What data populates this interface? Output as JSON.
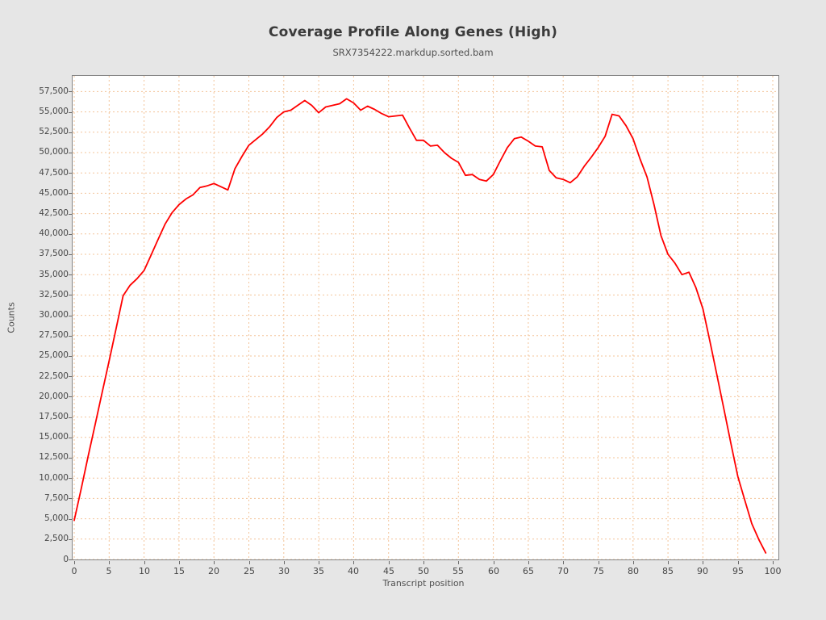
{
  "header": {
    "title": "Coverage Profile Along Genes (High)",
    "subtitle": "SRX7354222.markdup.sorted.bam"
  },
  "colors": {
    "page_background": "#e6e6e6",
    "plot_background": "#ffffff",
    "plot_border": "#848484",
    "gridline": "#f3c49a",
    "series_line": "#ff0000",
    "tick_text": "#464646",
    "title_text": "#3b3b3b"
  },
  "chart_data": {
    "type": "line",
    "title": "Coverage Profile Along Genes (High)",
    "subtitle": "SRX7354222.markdup.sorted.bam",
    "xlabel": "Transcript position",
    "ylabel": "Counts",
    "xlim": [
      0,
      101
    ],
    "ylim": [
      0,
      59600
    ],
    "x_ticks": [
      0,
      5,
      10,
      15,
      20,
      25,
      30,
      35,
      40,
      45,
      50,
      55,
      60,
      65,
      70,
      75,
      80,
      85,
      90,
      95,
      100
    ],
    "y_ticks": [
      0,
      2500,
      5000,
      7500,
      10000,
      12500,
      15000,
      17500,
      20000,
      22500,
      25000,
      27500,
      30000,
      32500,
      35000,
      37500,
      40000,
      42500,
      45000,
      47500,
      50000,
      52500,
      55000,
      57500
    ],
    "grid": "dotted both axes",
    "legend": "none",
    "series": [
      {
        "name": "SRX7354222.markdup.sorted.bam",
        "color": "#ff0000",
        "x_start": 0,
        "x_step": 1,
        "values": [
          4800,
          8700,
          12700,
          16600,
          20500,
          24400,
          28400,
          32400,
          33700,
          34500,
          35500,
          37400,
          39300,
          41200,
          42600,
          43600,
          44300,
          44800,
          45700,
          45900,
          46200,
          45800,
          45400,
          48000,
          49500,
          50900,
          51600,
          52300,
          53200,
          54300,
          55000,
          55200,
          55800,
          56400,
          55800,
          54900,
          55600,
          55800,
          56000,
          56600,
          56100,
          55200,
          55700,
          55300,
          54800,
          54400,
          54500,
          54600,
          53000,
          51500,
          51500,
          50800,
          50900,
          50000,
          49300,
          48800,
          47200,
          47300,
          46700,
          46500,
          47300,
          49000,
          50600,
          51700,
          51900,
          51400,
          50800,
          50700,
          47800,
          46900,
          46700,
          46300,
          47000,
          48300,
          49400,
          50600,
          52000,
          54700,
          54500,
          53300,
          51700,
          49200,
          47000,
          43600,
          39800,
          37500,
          36400,
          35000,
          35300,
          33400,
          30800,
          26800,
          22700,
          18500,
          14300,
          10200,
          7250,
          4400,
          2450,
          800
        ]
      }
    ]
  }
}
